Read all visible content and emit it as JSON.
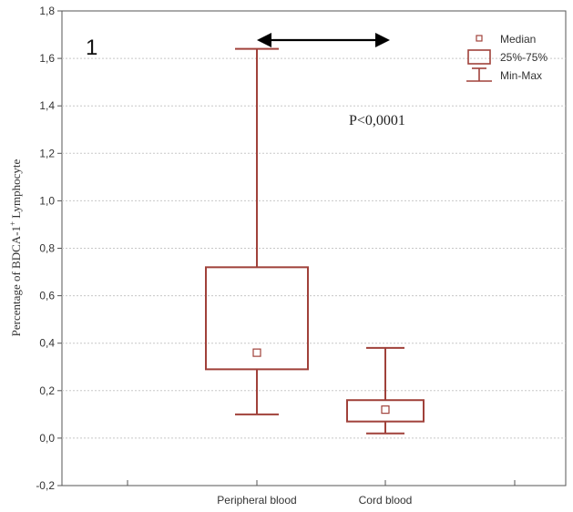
{
  "chart_data": {
    "type": "box",
    "panel_label": "1",
    "ylabel": "Percentage of BDCA-1",
    "ylabel_superscript": "+",
    "ylabel_suffix": " Lymphocyte",
    "ylim": [
      -0.2,
      1.8
    ],
    "yticks": [
      "-0,2",
      "0,0",
      "0,2",
      "0,4",
      "0,6",
      "0,8",
      "1,0",
      "1,2",
      "1,4",
      "1,6",
      "1,8"
    ],
    "ytick_values": [
      -0.2,
      0.0,
      0.2,
      0.4,
      0.6,
      0.8,
      1.0,
      1.2,
      1.4,
      1.6,
      1.8
    ],
    "grid": true,
    "categories": [
      "Peripheral blood",
      "Cord blood"
    ],
    "boxes": [
      {
        "category": "Peripheral blood",
        "min": 0.1,
        "q1": 0.29,
        "median": 0.36,
        "q3": 0.72,
        "max": 1.64
      },
      {
        "category": "Cord blood",
        "min": 0.02,
        "q1": 0.07,
        "median": 0.12,
        "q3": 0.16,
        "max": 0.38
      }
    ],
    "annotation": "P<0,0001",
    "legend": {
      "position": "top-right",
      "items": [
        {
          "label": "Median",
          "symbol": "square-point"
        },
        {
          "label": "25%-75%",
          "symbol": "box"
        },
        {
          "label": "Min-Max",
          "symbol": "whisker"
        }
      ]
    },
    "colors": {
      "box": "#a0413a",
      "grid": "#c8c8c8",
      "text": "#333333",
      "arrow": "#000000"
    }
  }
}
